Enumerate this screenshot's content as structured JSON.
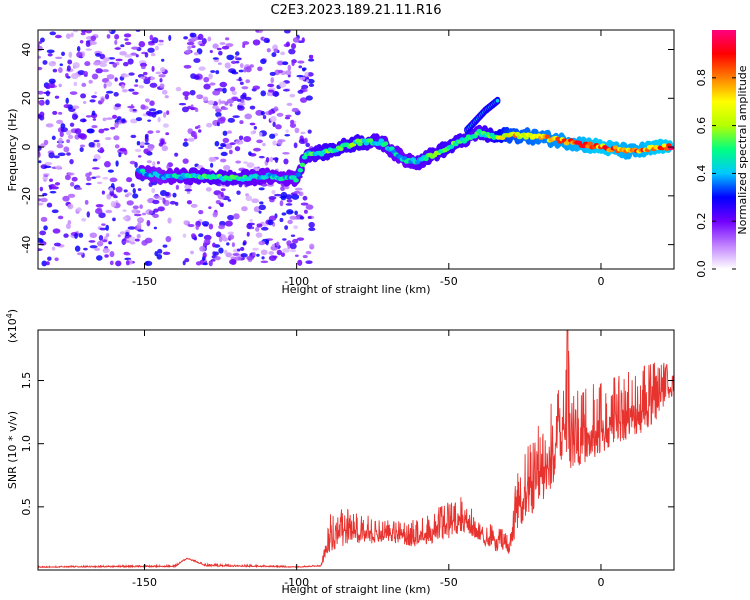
{
  "chart_data": [
    {
      "type": "heatmap",
      "title": "C2E3.2023.189.21.11.R16",
      "xlabel": "Height of straight line (km)",
      "ylabel": "Frequency (Hz)",
      "xlim": [
        -185,
        24
      ],
      "ylim": [
        -50,
        48
      ],
      "xticks": [
        -150,
        -100,
        -50,
        0
      ],
      "yticks": [
        -40,
        -20,
        0,
        20,
        40
      ],
      "grid": false,
      "colorbar": {
        "label": "Normalized spectral amplitude",
        "range": [
          0,
          1
        ],
        "ticks": [
          "0.0",
          "0.2",
          "0.4",
          "0.6",
          "0.8"
        ],
        "colors": [
          "#ffffff",
          "#c080ff",
          "#7000ff",
          "#0000ff",
          "#00c8ff",
          "#00ff80",
          "#b4ff00",
          "#ffff00",
          "#ff8000",
          "#ff0000",
          "#ff0080"
        ]
      },
      "ridge": {
        "x": [
          -152,
          -145,
          -140,
          -130,
          -120,
          -110,
          -100,
          -97,
          -90,
          -80,
          -72,
          -65,
          -60,
          -50,
          -40,
          -35,
          -30,
          -20,
          -10,
          0,
          10,
          20,
          23
        ],
        "freq_hz": [
          -10,
          -12,
          -12,
          -12,
          -13,
          -12,
          -13,
          -3,
          -2,
          2,
          2,
          -5,
          -6,
          0,
          6,
          4,
          5,
          4,
          2,
          0,
          -2,
          0,
          0
        ],
        "peak_amplitude": [
          0.45,
          0.4,
          0.45,
          0.5,
          0.5,
          0.45,
          0.45,
          0.5,
          0.55,
          0.55,
          0.5,
          0.45,
          0.5,
          0.55,
          0.5,
          0.6,
          0.75,
          0.8,
          0.85,
          0.9,
          0.85,
          0.9,
          0.9
        ]
      },
      "branch": {
        "x": [
          -44,
          -38,
          -34
        ],
        "freq_hz": [
          7,
          15,
          19
        ]
      },
      "noise_band": {
        "x_range": [
          -185,
          -95
        ],
        "freq_range_hz": [
          -48,
          48
        ],
        "amplitude_range": [
          0.05,
          0.3
        ]
      }
    },
    {
      "type": "line",
      "title": "",
      "xlabel": "Height of straight line (km)",
      "ylabel": "SNR (10 * v/v)",
      "y_multiplier": "(x10^4)",
      "xlim": [
        -185,
        24
      ],
      "ylim": [
        0,
        19000
      ],
      "xticks": [
        -150,
        -100,
        -50,
        0
      ],
      "yticks": [
        "0.5",
        "1.0",
        "1.5"
      ],
      "color": "#e8322e",
      "grid": false,
      "envelope": {
        "x": [
          -185,
          -140,
          -136,
          -130,
          -100,
          -92,
          -89,
          -85,
          -80,
          -70,
          -60,
          -50,
          -45,
          -40,
          -35,
          -30,
          -28,
          -25,
          -20,
          -15,
          -12,
          -11,
          -10,
          -5,
          0,
          5,
          10,
          15,
          20,
          24
        ],
        "baseline": [
          200,
          250,
          900,
          300,
          200,
          300,
          1500,
          1800,
          2000,
          2200,
          1800,
          2500,
          3000,
          2200,
          1500,
          1200,
          2800,
          4000,
          5000,
          7000,
          9000,
          9500,
          8000,
          8500,
          9000,
          10000,
          10500,
          11000,
          12000,
          14000
        ],
        "peak": [
          300,
          400,
          1000,
          500,
          300,
          400,
          4500,
          5000,
          4500,
          4000,
          4000,
          5500,
          6000,
          4200,
          3500,
          3000,
          8000,
          10000,
          12000,
          14500,
          15000,
          19500,
          14000,
          14500,
          15000,
          15500,
          16000,
          16500,
          17000,
          15500
        ]
      }
    }
  ]
}
